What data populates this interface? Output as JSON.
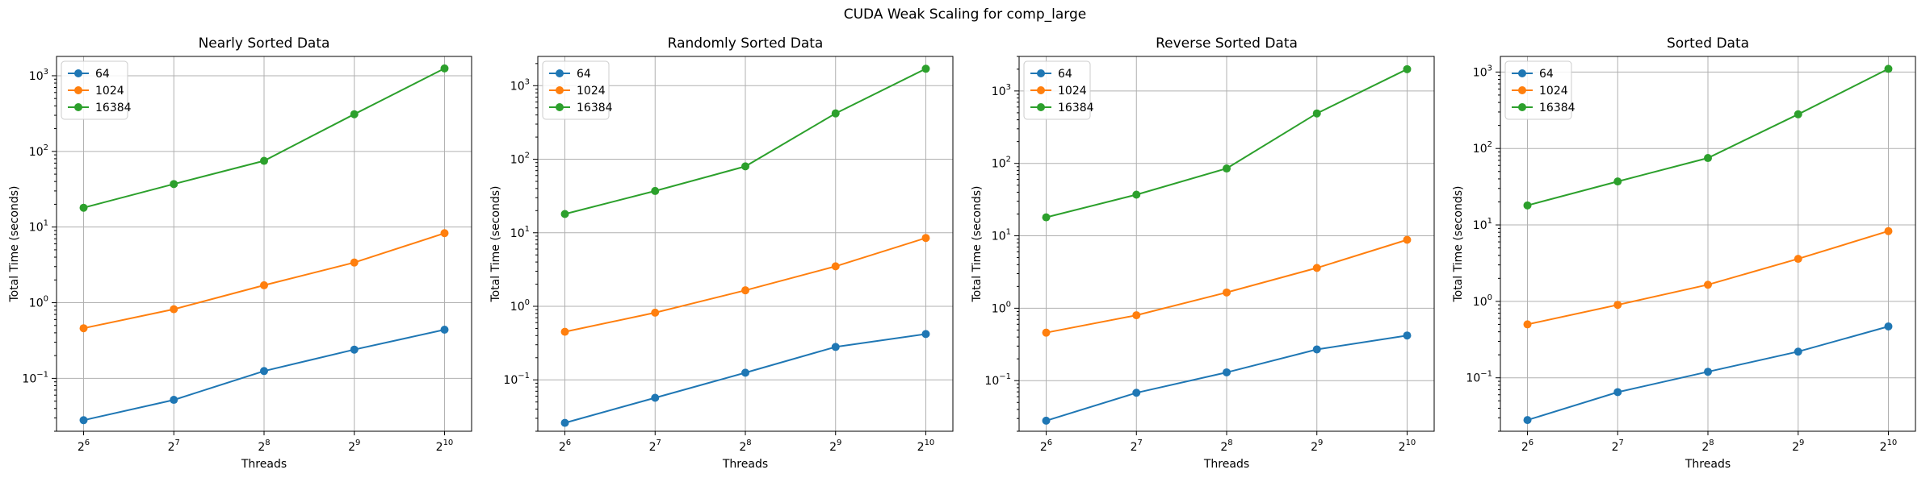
{
  "figure": {
    "suptitle": "CUDA Weak Scaling for comp_large"
  },
  "colors": {
    "series_64": "#1f77b4",
    "series_1024": "#ff7f0e",
    "series_16384": "#2ca02c",
    "grid": "#b0b0b0"
  },
  "chart_data": [
    {
      "type": "line",
      "title": "Nearly Sorted Data",
      "xlabel": "Threads",
      "ylabel": "Total Time (seconds)",
      "xscale": "log2",
      "yscale": "log10",
      "grid": true,
      "legend": "top-left",
      "x": [
        64,
        128,
        256,
        512,
        1024
      ],
      "x_tick_labels": [
        {
          "base": "2",
          "exp": "6"
        },
        {
          "base": "2",
          "exp": "7"
        },
        {
          "base": "2",
          "exp": "8"
        },
        {
          "base": "2",
          "exp": "9"
        },
        {
          "base": "2",
          "exp": "10"
        }
      ],
      "ylim": [
        0.02,
        1800
      ],
      "y_tick_labels": [
        {
          "base": "10",
          "exp": "−1",
          "value": 0.1
        },
        {
          "base": "10",
          "exp": "0",
          "value": 1
        },
        {
          "base": "10",
          "exp": "1",
          "value": 10
        },
        {
          "base": "10",
          "exp": "2",
          "value": 100
        },
        {
          "base": "10",
          "exp": "3",
          "value": 1000
        }
      ],
      "series": [
        {
          "name": "64",
          "values": [
            0.028,
            0.052,
            0.125,
            0.24,
            0.44
          ]
        },
        {
          "name": "1024",
          "values": [
            0.46,
            0.82,
            1.7,
            3.4,
            8.3
          ]
        },
        {
          "name": "16384",
          "values": [
            18,
            37,
            75,
            310,
            1250
          ]
        }
      ]
    },
    {
      "type": "line",
      "title": "Randomly Sorted Data",
      "xlabel": "Threads",
      "ylabel": "Total Time (seconds)",
      "xscale": "log2",
      "yscale": "log10",
      "grid": true,
      "legend": "top-left",
      "x": [
        64,
        128,
        256,
        512,
        1024
      ],
      "x_tick_labels": [
        {
          "base": "2",
          "exp": "6"
        },
        {
          "base": "2",
          "exp": "7"
        },
        {
          "base": "2",
          "exp": "8"
        },
        {
          "base": "2",
          "exp": "9"
        },
        {
          "base": "2",
          "exp": "10"
        }
      ],
      "ylim": [
        0.02,
        2500
      ],
      "y_tick_labels": [
        {
          "base": "10",
          "exp": "−1",
          "value": 0.1
        },
        {
          "base": "10",
          "exp": "0",
          "value": 1
        },
        {
          "base": "10",
          "exp": "1",
          "value": 10
        },
        {
          "base": "10",
          "exp": "2",
          "value": 100
        },
        {
          "base": "10",
          "exp": "3",
          "value": 1000
        }
      ],
      "series": [
        {
          "name": "64",
          "values": [
            0.026,
            0.057,
            0.125,
            0.28,
            0.42
          ]
        },
        {
          "name": "1024",
          "values": [
            0.45,
            0.82,
            1.65,
            3.5,
            8.5
          ]
        },
        {
          "name": "16384",
          "values": [
            18,
            37,
            80,
            420,
            1700
          ]
        }
      ]
    },
    {
      "type": "line",
      "title": "Reverse Sorted Data",
      "xlabel": "Threads",
      "ylabel": "Total Time (seconds)",
      "xscale": "log2",
      "yscale": "log10",
      "grid": true,
      "legend": "top-left",
      "x": [
        64,
        128,
        256,
        512,
        1024
      ],
      "x_tick_labels": [
        {
          "base": "2",
          "exp": "6"
        },
        {
          "base": "2",
          "exp": "7"
        },
        {
          "base": "2",
          "exp": "8"
        },
        {
          "base": "2",
          "exp": "9"
        },
        {
          "base": "2",
          "exp": "10"
        }
      ],
      "ylim": [
        0.02,
        3000
      ],
      "y_tick_labels": [
        {
          "base": "10",
          "exp": "−1",
          "value": 0.1
        },
        {
          "base": "10",
          "exp": "0",
          "value": 1
        },
        {
          "base": "10",
          "exp": "1",
          "value": 10
        },
        {
          "base": "10",
          "exp": "2",
          "value": 100
        },
        {
          "base": "10",
          "exp": "3",
          "value": 1000
        }
      ],
      "series": [
        {
          "name": "64",
          "values": [
            0.028,
            0.068,
            0.13,
            0.27,
            0.42
          ]
        },
        {
          "name": "1024",
          "values": [
            0.46,
            0.8,
            1.65,
            3.6,
            8.8
          ]
        },
        {
          "name": "16384",
          "values": [
            18,
            37,
            85,
            490,
            2000
          ]
        }
      ]
    },
    {
      "type": "line",
      "title": "Sorted Data",
      "xlabel": "Threads",
      "ylabel": "Total Time (seconds)",
      "xscale": "log2",
      "yscale": "log10",
      "grid": true,
      "legend": "top-left",
      "x": [
        64,
        128,
        256,
        512,
        1024
      ],
      "x_tick_labels": [
        {
          "base": "2",
          "exp": "6"
        },
        {
          "base": "2",
          "exp": "7"
        },
        {
          "base": "2",
          "exp": "8"
        },
        {
          "base": "2",
          "exp": "9"
        },
        {
          "base": "2",
          "exp": "10"
        }
      ],
      "ylim": [
        0.02,
        1600
      ],
      "y_tick_labels": [
        {
          "base": "10",
          "exp": "−1",
          "value": 0.1
        },
        {
          "base": "10",
          "exp": "0",
          "value": 1
        },
        {
          "base": "10",
          "exp": "1",
          "value": 10
        },
        {
          "base": "10",
          "exp": "2",
          "value": 100
        },
        {
          "base": "10",
          "exp": "3",
          "value": 1000
        }
      ],
      "series": [
        {
          "name": "64",
          "values": [
            0.028,
            0.065,
            0.12,
            0.22,
            0.47
          ]
        },
        {
          "name": "1024",
          "values": [
            0.5,
            0.9,
            1.65,
            3.6,
            8.3
          ]
        },
        {
          "name": "16384",
          "values": [
            18,
            37,
            75,
            280,
            1100
          ]
        }
      ]
    }
  ]
}
